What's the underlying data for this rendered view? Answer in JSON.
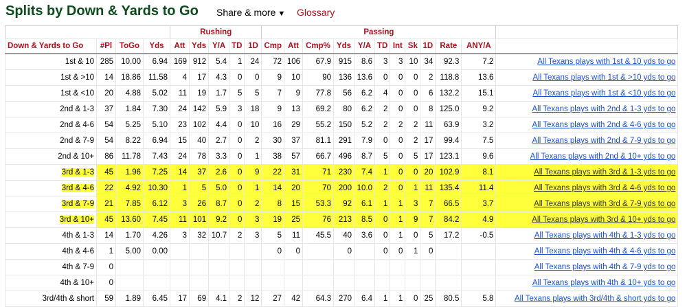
{
  "header": {
    "title": "Splits by Down & Yards to Go",
    "share_label": "Share & more",
    "glossary_label": "Glossary"
  },
  "table": {
    "over_headers": {
      "rushing": "Rushing",
      "passing": "Passing"
    },
    "columns": [
      "Down & Yards to Go",
      "#Pl",
      "ToGo",
      "Yds",
      "Att",
      "Yds",
      "Y/A",
      "TD",
      "1D",
      "Cmp",
      "Att",
      "Cmp%",
      "Yds",
      "Y/A",
      "TD",
      "Int",
      "Sk",
      "1D",
      "Rate",
      "ANY/A",
      ""
    ],
    "rows": [
      {
        "label": "1st & 10",
        "hl": false,
        "cells": [
          "285",
          "10.00",
          "6.94",
          "169",
          "912",
          "5.4",
          "1",
          "24",
          "72",
          "106",
          "67.9",
          "915",
          "8.6",
          "3",
          "3",
          "10",
          "34",
          "92.3",
          "7.2"
        ],
        "link": "All Texans plays with 1st & 10 yds to go"
      },
      {
        "label": "1st & >10",
        "hl": false,
        "cells": [
          "14",
          "18.86",
          "11.58",
          "4",
          "17",
          "4.3",
          "0",
          "0",
          "9",
          "10",
          "90",
          "136",
          "13.6",
          "0",
          "0",
          "0",
          "2",
          "118.8",
          "13.6"
        ],
        "link": "All Texans plays with 1st & >10 yds to go"
      },
      {
        "label": "1st & <10",
        "hl": false,
        "cells": [
          "20",
          "4.88",
          "5.02",
          "11",
          "19",
          "1.7",
          "5",
          "5",
          "7",
          "9",
          "77.8",
          "56",
          "6.2",
          "4",
          "0",
          "0",
          "6",
          "132.2",
          "15.1"
        ],
        "link": "All Texans plays with 1st & <10 yds to go"
      },
      {
        "label": "2nd & 1-3",
        "hl": false,
        "cells": [
          "37",
          "1.84",
          "7.30",
          "24",
          "142",
          "5.9",
          "3",
          "18",
          "9",
          "13",
          "69.2",
          "80",
          "6.2",
          "2",
          "0",
          "0",
          "8",
          "125.0",
          "9.2"
        ],
        "link": "All Texans plays with 2nd & 1-3 yds to go"
      },
      {
        "label": "2nd & 4-6",
        "hl": false,
        "cells": [
          "54",
          "5.25",
          "5.10",
          "23",
          "102",
          "4.4",
          "0",
          "10",
          "16",
          "29",
          "55.2",
          "150",
          "5.2",
          "2",
          "2",
          "2",
          "11",
          "63.9",
          "3.2"
        ],
        "link": "All Texans plays with 2nd & 4-6 yds to go"
      },
      {
        "label": "2nd & 7-9",
        "hl": false,
        "cells": [
          "54",
          "8.22",
          "6.94",
          "15",
          "40",
          "2.7",
          "0",
          "2",
          "30",
          "37",
          "81.1",
          "291",
          "7.9",
          "0",
          "0",
          "2",
          "17",
          "99.4",
          "7.5"
        ],
        "link": "All Texans plays with 2nd & 7-9 yds to go"
      },
      {
        "label": "2nd & 10+",
        "hl": false,
        "cells": [
          "86",
          "11.78",
          "7.43",
          "24",
          "78",
          "3.3",
          "0",
          "1",
          "38",
          "57",
          "66.7",
          "496",
          "8.7",
          "5",
          "0",
          "5",
          "17",
          "123.1",
          "9.6"
        ],
        "link": "All Texans plays with 2nd & 10+ yds to go"
      },
      {
        "label": "3rd & 1-3",
        "hl": true,
        "cells": [
          "45",
          "1.96",
          "7.25",
          "14",
          "37",
          "2.6",
          "0",
          "9",
          "22",
          "31",
          "71",
          "230",
          "7.4",
          "1",
          "0",
          "0",
          "20",
          "102.9",
          "8.1"
        ],
        "link": "All Texans plays with 3rd & 1-3 yds to go"
      },
      {
        "label": "3rd & 4-6",
        "hl": true,
        "cells": [
          "22",
          "4.92",
          "10.30",
          "1",
          "5",
          "5.0",
          "0",
          "1",
          "14",
          "20",
          "70",
          "200",
          "10.0",
          "2",
          "0",
          "1",
          "11",
          "135.4",
          "11.4"
        ],
        "link": "All Texans plays with 3rd & 4-6 yds to go"
      },
      {
        "label": "3rd & 7-9",
        "hl": true,
        "cells": [
          "21",
          "7.85",
          "6.12",
          "3",
          "26",
          "8.7",
          "0",
          "2",
          "8",
          "15",
          "53.3",
          "92",
          "6.1",
          "1",
          "1",
          "3",
          "7",
          "66.5",
          "3.7"
        ],
        "link": "All Texans plays with 3rd & 7-9 yds to go"
      },
      {
        "label": "3rd & 10+",
        "hl": true,
        "cells": [
          "45",
          "13.60",
          "7.45",
          "11",
          "101",
          "9.2",
          "0",
          "3",
          "19",
          "25",
          "76",
          "213",
          "8.5",
          "0",
          "1",
          "9",
          "7",
          "84.2",
          "4.9"
        ],
        "link": "All Texans plays with 3rd & 10+ yds to go"
      },
      {
        "label": "4th & 1-3",
        "hl": false,
        "cells": [
          "14",
          "1.70",
          "4.26",
          "3",
          "32",
          "10.7",
          "2",
          "3",
          "5",
          "11",
          "45.5",
          "40",
          "3.6",
          "0",
          "1",
          "0",
          "5",
          "17.2",
          "-0.5"
        ],
        "link": "All Texans plays with 4th & 1-3 yds to go"
      },
      {
        "label": "4th & 4-6",
        "hl": false,
        "cells": [
          "1",
          "5.00",
          "0.00",
          "",
          "",
          "",
          "",
          "",
          "0",
          "0",
          "",
          "0",
          "",
          "0",
          "0",
          "1",
          "0",
          "",
          ""
        ],
        "link": "All Texans plays with 4th & 4-6 yds to go"
      },
      {
        "label": "4th & 7-9",
        "hl": false,
        "cells": [
          "0",
          "",
          "",
          "",
          "",
          "",
          "",
          "",
          "",
          "",
          "",
          "",
          "",
          "",
          "",
          "",
          "",
          "",
          ""
        ],
        "link": "All Texans plays with 4th & 7-9 yds to go"
      },
      {
        "label": "4th & 10+",
        "hl": false,
        "cells": [
          "0",
          "",
          "",
          "",
          "",
          "",
          "",
          "",
          "",
          "",
          "",
          "",
          "",
          "",
          "",
          "",
          "",
          "",
          ""
        ],
        "link": "All Texans plays with 4th & 10+ yds to go"
      },
      {
        "label": "3rd/4th & short",
        "hl": false,
        "cells": [
          "59",
          "1.89",
          "6.45",
          "17",
          "69",
          "4.1",
          "2",
          "12",
          "27",
          "42",
          "64.3",
          "270",
          "6.4",
          "1",
          "1",
          "0",
          "25",
          "80.5",
          "5.8"
        ],
        "link": "All Texans plays with 3rd/4th & short yds to go"
      }
    ]
  },
  "colors": {
    "title": "#0d4a1c",
    "header_text": "#a8101b",
    "highlight": "#ffff3c",
    "link": "#1a4fd4"
  }
}
